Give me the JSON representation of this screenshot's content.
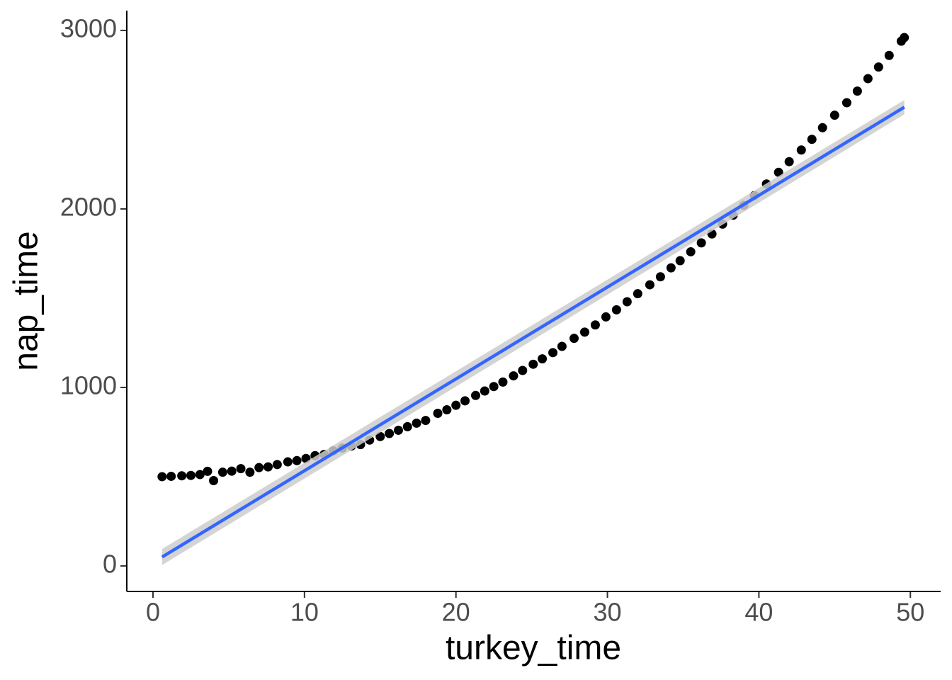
{
  "chart_data": {
    "type": "scatter",
    "x_label": "turkey_time",
    "y_label": "nap_time",
    "xlim": [
      -1.73,
      52.0
    ],
    "ylim": [
      -143,
      3111
    ],
    "xticks": [
      0,
      10,
      20,
      30,
      40,
      50
    ],
    "yticks": [
      0,
      1000,
      2000,
      3000
    ],
    "series": [
      {
        "color": "#000000",
        "x": [
          0.6,
          1.2,
          1.9,
          2.5,
          3.1,
          3.6,
          4.0,
          4.6,
          5.2,
          5.8,
          6.4,
          7.0,
          7.6,
          8.2,
          8.9,
          9.5,
          10.1,
          10.7,
          11.3,
          11.9,
          12.5,
          13.1,
          13.7,
          14.3,
          15.0,
          15.6,
          16.2,
          16.8,
          17.4,
          18.0,
          18.8,
          19.4,
          20.0,
          20.6,
          21.3,
          21.9,
          22.5,
          23.1,
          23.8,
          24.4,
          25.1,
          25.7,
          26.4,
          27.0,
          27.8,
          28.5,
          29.2,
          29.9,
          30.6,
          31.3,
          32.0,
          32.8,
          33.5,
          34.2,
          34.8,
          35.5,
          36.2,
          36.9,
          37.6,
          38.3,
          39.0,
          39.7,
          40.5,
          41.3,
          42.0,
          42.8,
          43.5,
          44.2,
          45.0,
          45.8,
          46.5,
          47.2,
          47.9,
          48.6,
          49.4,
          49.6
        ],
        "values": [
          500,
          502,
          505,
          507,
          512,
          530,
          478,
          525,
          531,
          545,
          525,
          551,
          555,
          568,
          583,
          590,
          602,
          618,
          625,
          645,
          660,
          672,
          680,
          705,
          725,
          742,
          760,
          780,
          800,
          815,
          855,
          875,
          900,
          925,
          955,
          980,
          1005,
          1030,
          1065,
          1095,
          1130,
          1160,
          1195,
          1230,
          1275,
          1310,
          1350,
          1395,
          1435,
          1480,
          1525,
          1575,
          1620,
          1670,
          1710,
          1760,
          1810,
          1860,
          1915,
          1965,
          2020,
          2075,
          2140,
          2205,
          2265,
          2330,
          2390,
          2455,
          2525,
          2595,
          2660,
          2730,
          2795,
          2860,
          2940,
          2960
        ]
      }
    ],
    "fit": {
      "color": "#3366ff",
      "band_color": "#cccccc",
      "x": [
        0.6,
        49.6
      ],
      "values": [
        50,
        2570
      ],
      "lower": [
        5,
        2530
      ],
      "upper": [
        95,
        2610
      ]
    }
  }
}
